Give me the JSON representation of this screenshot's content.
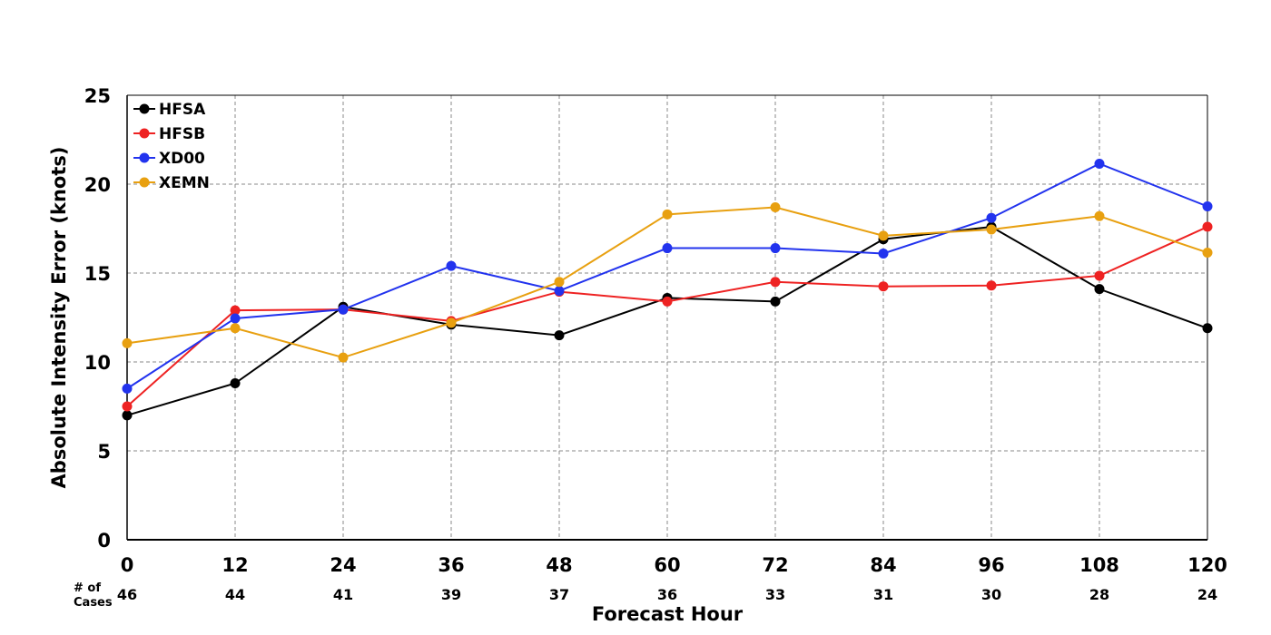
{
  "chart_data": {
    "type": "line",
    "xlabel": "Forecast Hour",
    "ylabel": "Absolute Intensity Error (knots)",
    "x": [
      0,
      12,
      24,
      36,
      48,
      60,
      72,
      84,
      96,
      108,
      120
    ],
    "xlim": [
      0,
      120
    ],
    "ylim": [
      0,
      25
    ],
    "yticks": [
      0,
      5,
      10,
      15,
      20,
      25
    ],
    "grid": true,
    "legend_position": "top-left",
    "cases_label_line1": "# of",
    "cases_label_line2": "Cases",
    "cases": [
      46,
      44,
      41,
      39,
      37,
      36,
      33,
      31,
      30,
      28,
      24
    ],
    "series": [
      {
        "name": "HFSA",
        "color": "#000000",
        "values": [
          7.0,
          8.8,
          13.1,
          12.1,
          11.5,
          13.6,
          13.4,
          16.9,
          17.6,
          14.1,
          11.9
        ]
      },
      {
        "name": "HFSB",
        "color": "#ee2222",
        "values": [
          7.5,
          12.9,
          12.95,
          12.3,
          13.95,
          13.4,
          14.5,
          14.25,
          14.3,
          14.85,
          17.6
        ]
      },
      {
        "name": "XD00",
        "color": "#2233ee",
        "values": [
          8.5,
          12.45,
          12.95,
          15.4,
          14.0,
          16.4,
          16.4,
          16.1,
          18.1,
          21.15,
          18.75
        ]
      },
      {
        "name": "XEMN",
        "color": "#e8a010",
        "values": [
          11.05,
          11.9,
          10.25,
          12.2,
          14.5,
          18.3,
          18.7,
          17.1,
          17.45,
          18.2,
          16.15
        ]
      }
    ]
  }
}
